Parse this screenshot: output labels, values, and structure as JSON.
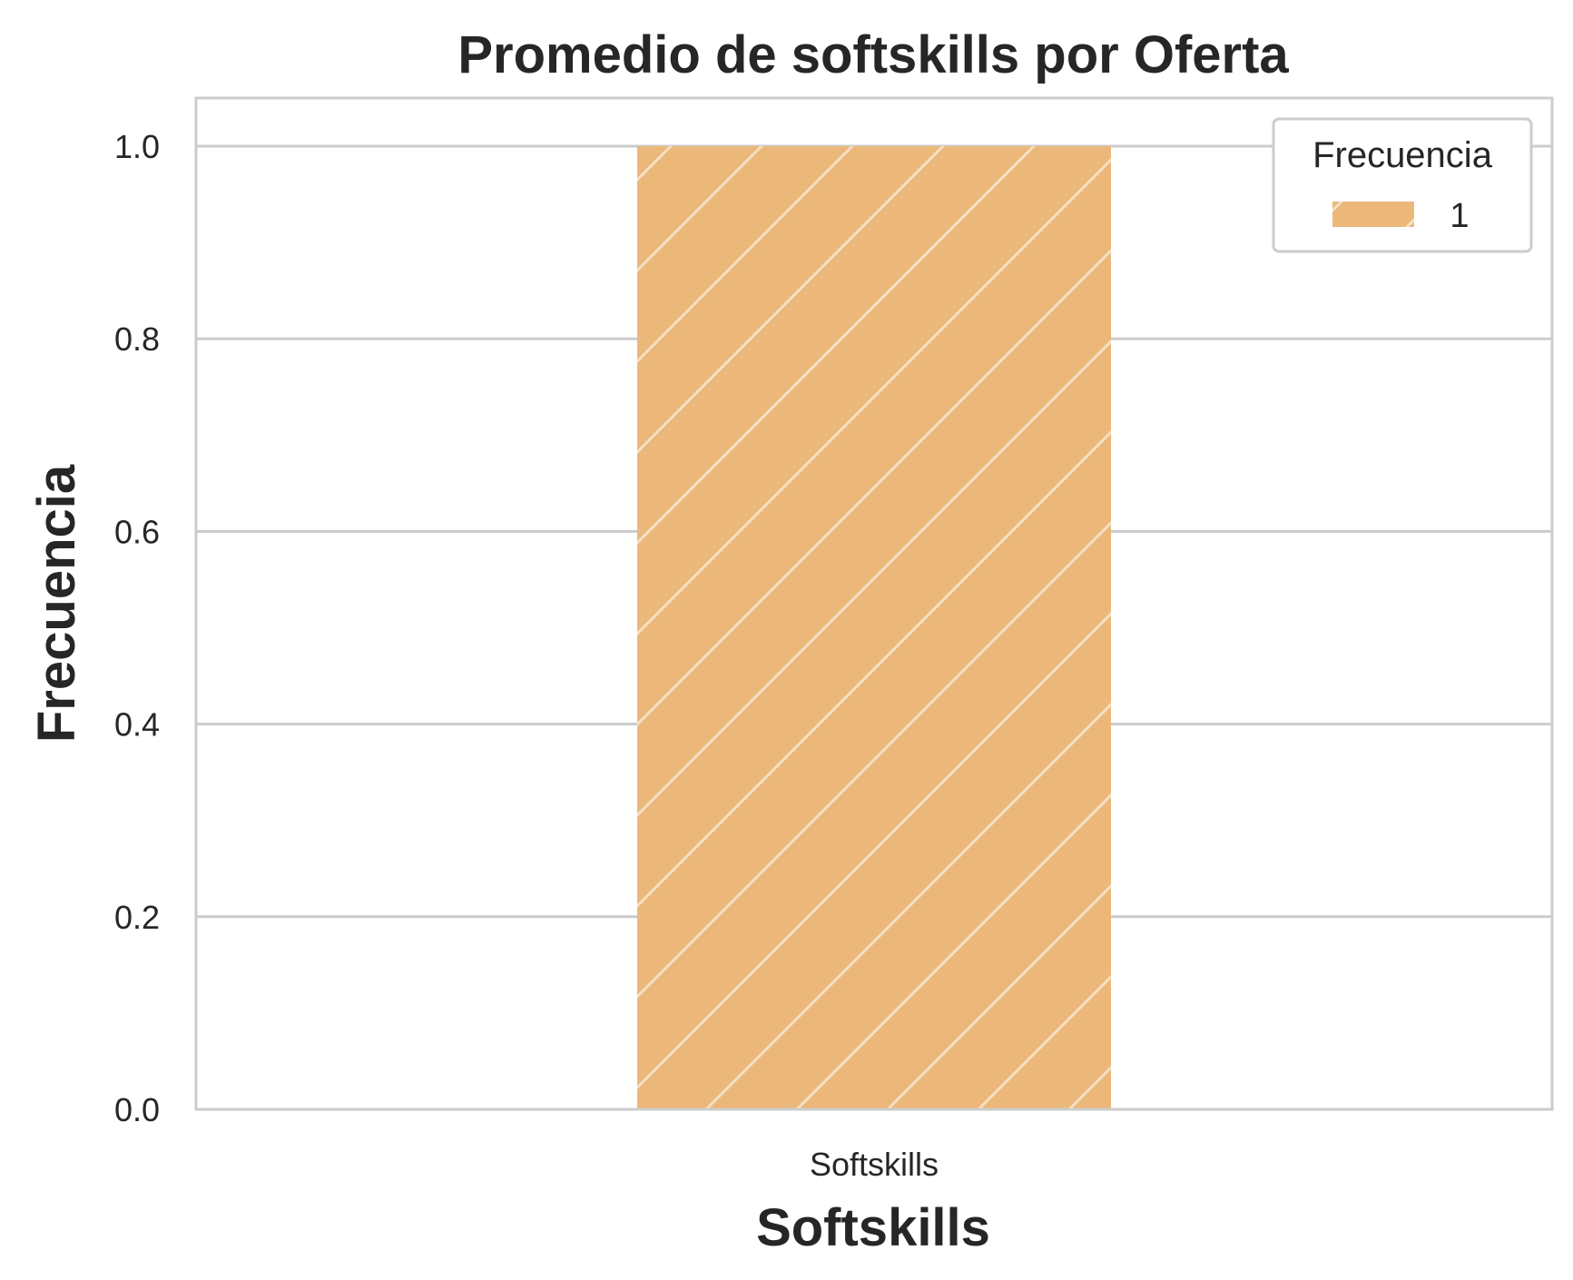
{
  "chart_data": {
    "type": "bar",
    "title": "Promedio de softskills por Oferta",
    "xlabel": "Softskills",
    "ylabel": "Frecuencia",
    "categories": [
      "Softskills"
    ],
    "series": [
      {
        "name": "1",
        "values": [
          1.0
        ]
      }
    ],
    "ylim": [
      0,
      1.05
    ],
    "yticks": [
      "0.0",
      "0.2",
      "0.4",
      "0.6",
      "0.8",
      "1.0"
    ],
    "grid": true,
    "legend": {
      "title": "Frecuencia",
      "placement": "top-right"
    },
    "bar_hatch": "diagonal",
    "colors": {
      "bar": "#ebb87a",
      "hatch": "#ffffff",
      "grid": "#cccccc",
      "spine": "#cccccc",
      "text": "#262626"
    }
  }
}
